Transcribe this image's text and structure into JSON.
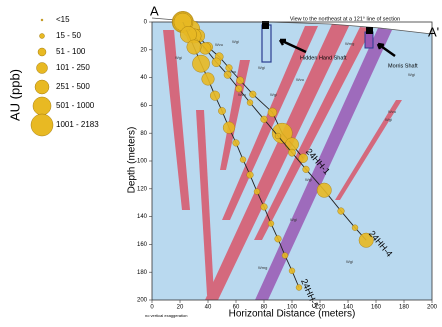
{
  "chart_data": {
    "type": "drillholes",
    "section_start": "A",
    "section_end": "A'",
    "view_note": "View to the northeast at a 121° line of section",
    "shafts": [
      "Hidden Hand Shaft",
      "Morris Shaft"
    ],
    "x_label": "Horizontal Distance (meters)",
    "y_label": "Depth (meters)",
    "exaggeration_note": "no vertical exaggeration",
    "legend_title": "AU (ppb)",
    "legend": [
      "<15",
      "15 - 50",
      "51 - 100",
      "101 - 250",
      "251 - 500",
      "501 - 1000",
      "1001 - 2183"
    ],
    "unit_labels": [
      "Wvu",
      "Wgi",
      "Wvu",
      "Wgi",
      "Wvu",
      "Wgi",
      "Wvu",
      "Wgi",
      "Wgi",
      "Wgi",
      "Wmg",
      "Wgi",
      "Wvu",
      "Wgi",
      "Wmg",
      "Wgi"
    ],
    "xlim": [
      0,
      200
    ],
    "ylim": [
      0,
      200
    ],
    "xticks": [
      0,
      20,
      40,
      60,
      80,
      100,
      120,
      140,
      160,
      180,
      200
    ],
    "yticks": [
      0,
      20,
      40,
      60,
      80,
      100,
      120,
      140,
      160,
      180,
      200
    ],
    "y_inverted": true,
    "point_color": "#e8b923",
    "line_color": "#222222",
    "series": [
      {
        "name": "24HH-1",
        "x": [
          22,
          28,
          33,
          40,
          48,
          55,
          63,
          72,
          86,
          93,
          100,
          108
        ],
        "values": [
          0,
          5,
          10,
          18,
          25,
          33,
          42,
          52,
          65,
          80,
          88,
          98
        ],
        "sizes": [
          1500,
          700,
          300,
          100,
          60,
          30,
          40,
          30,
          80,
          1200,
          300,
          80
        ]
      },
      {
        "name": "24HH-4",
        "x": [
          22,
          30,
          38,
          46,
          54,
          62,
          70,
          80,
          90,
          100,
          110,
          123,
          135,
          145,
          153
        ],
        "values": [
          0,
          10,
          19,
          29,
          38,
          48,
          58,
          70,
          82,
          94,
          106,
          121,
          136,
          148,
          157
        ],
        "sizes": [
          1200,
          400,
          200,
          80,
          40,
          30,
          20,
          30,
          20,
          40,
          30,
          400,
          30,
          20,
          400
        ]
      },
      {
        "name": "24HH-5",
        "x": [
          22,
          26,
          30,
          35,
          40,
          45,
          50,
          55,
          60,
          65,
          70,
          75,
          80,
          85,
          90,
          95,
          100,
          105
        ],
        "values": [
          0,
          9,
          18,
          30,
          41,
          53,
          64,
          76,
          87,
          99,
          110,
          122,
          133,
          145,
          156,
          168,
          179,
          191
        ],
        "sizes": [
          800,
          600,
          400,
          700,
          250,
          100,
          40,
          200,
          30,
          20,
          30,
          20,
          30,
          20,
          30,
          20,
          20,
          20
        ]
      }
    ]
  }
}
